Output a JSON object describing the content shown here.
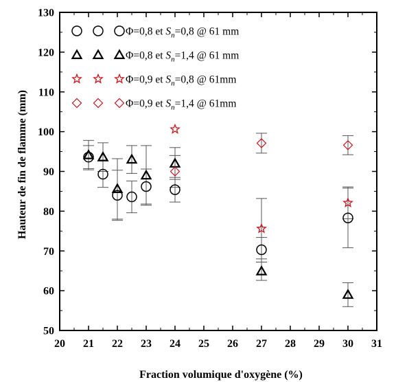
{
  "chart_data": {
    "type": "scatter",
    "title": "",
    "xlabel": "Fraction volumique d'oxygène (%)",
    "ylabel": "Hauteur de fin de flamme (mm)",
    "xlim": [
      20,
      31
    ],
    "ylim": [
      50,
      130
    ],
    "xticks": [
      "20",
      "21",
      "22",
      "23",
      "24",
      "25",
      "26",
      "27",
      "28",
      "29",
      "30",
      "31"
    ],
    "yticks": [
      "50",
      "60",
      "70",
      "80",
      "90",
      "100",
      "110",
      "120",
      "130"
    ],
    "legend_position": "top-left",
    "grid": false,
    "series": [
      {
        "name": "Φ=0,8 et Sn=0,8 @ 61 mm",
        "label_parts": [
          "Φ=0,8 et ",
          "S",
          "n",
          "=0,8 @ 61 mm"
        ],
        "marker": "circle",
        "color": "#000000",
        "points": [
          {
            "x": 21,
            "y": 93.6,
            "err": 2.9
          },
          {
            "x": 21.5,
            "y": 89.3,
            "err": 3.3
          },
          {
            "x": 22,
            "y": 84.0,
            "err": 6.3
          },
          {
            "x": 22.5,
            "y": 83.6,
            "err": 4.0
          },
          {
            "x": 23,
            "y": 86.2,
            "err": 4.4
          },
          {
            "x": 24,
            "y": 85.4,
            "err": 3.1
          },
          {
            "x": 27,
            "y": 70.3,
            "err": 3.1
          },
          {
            "x": 30,
            "y": 78.3,
            "err": 7.5
          }
        ]
      },
      {
        "name": "Φ=0,8 et Sn=1,4 @ 61 mm",
        "label_parts": [
          "Φ=0,8 et ",
          "S",
          "n",
          "=1,4 @ 61 mm"
        ],
        "marker": "triangle",
        "color": "#000000",
        "points": [
          {
            "x": 21,
            "y": 94.1,
            "err": 3.7
          },
          {
            "x": 21.5,
            "y": 93.6,
            "err": 3.6
          },
          {
            "x": 22,
            "y": 85.6,
            "err": 7.6
          },
          {
            "x": 22.5,
            "y": 93.0,
            "err": 3.5
          },
          {
            "x": 23,
            "y": 89.0,
            "err": 7.5
          },
          {
            "x": 24,
            "y": 92.0,
            "err": 4.0
          },
          {
            "x": 27,
            "y": 64.9,
            "err": 2.3
          },
          {
            "x": 30,
            "y": 59.0,
            "err": 3.0
          }
        ]
      },
      {
        "name": "Φ=0,9 et Sn=0,8 @ 61mm",
        "label_parts": [
          "Φ=0,9 et ",
          "S",
          "n",
          "=0,8 @ 61mm"
        ],
        "marker": "star",
        "color": "#c8151b",
        "points": [
          {
            "x": 24,
            "y": 100.6,
            "err": 0
          },
          {
            "x": 27,
            "y": 75.6,
            "err": 7.6
          },
          {
            "x": 30,
            "y": 82.1,
            "err": 4.0
          }
        ]
      },
      {
        "name": "Φ=0,9 et Sn=1,4 @ 61mm",
        "label_parts": [
          "Φ=0,9 et ",
          "S",
          "n",
          "=1,4 @ 61mm"
        ],
        "marker": "diamond",
        "color": "#c8151b",
        "points": [
          {
            "x": 24,
            "y": 90.0,
            "err": 4.0
          },
          {
            "x": 27,
            "y": 97.1,
            "err": 2.5
          },
          {
            "x": 30,
            "y": 96.6,
            "err": 2.4
          }
        ]
      }
    ]
  }
}
